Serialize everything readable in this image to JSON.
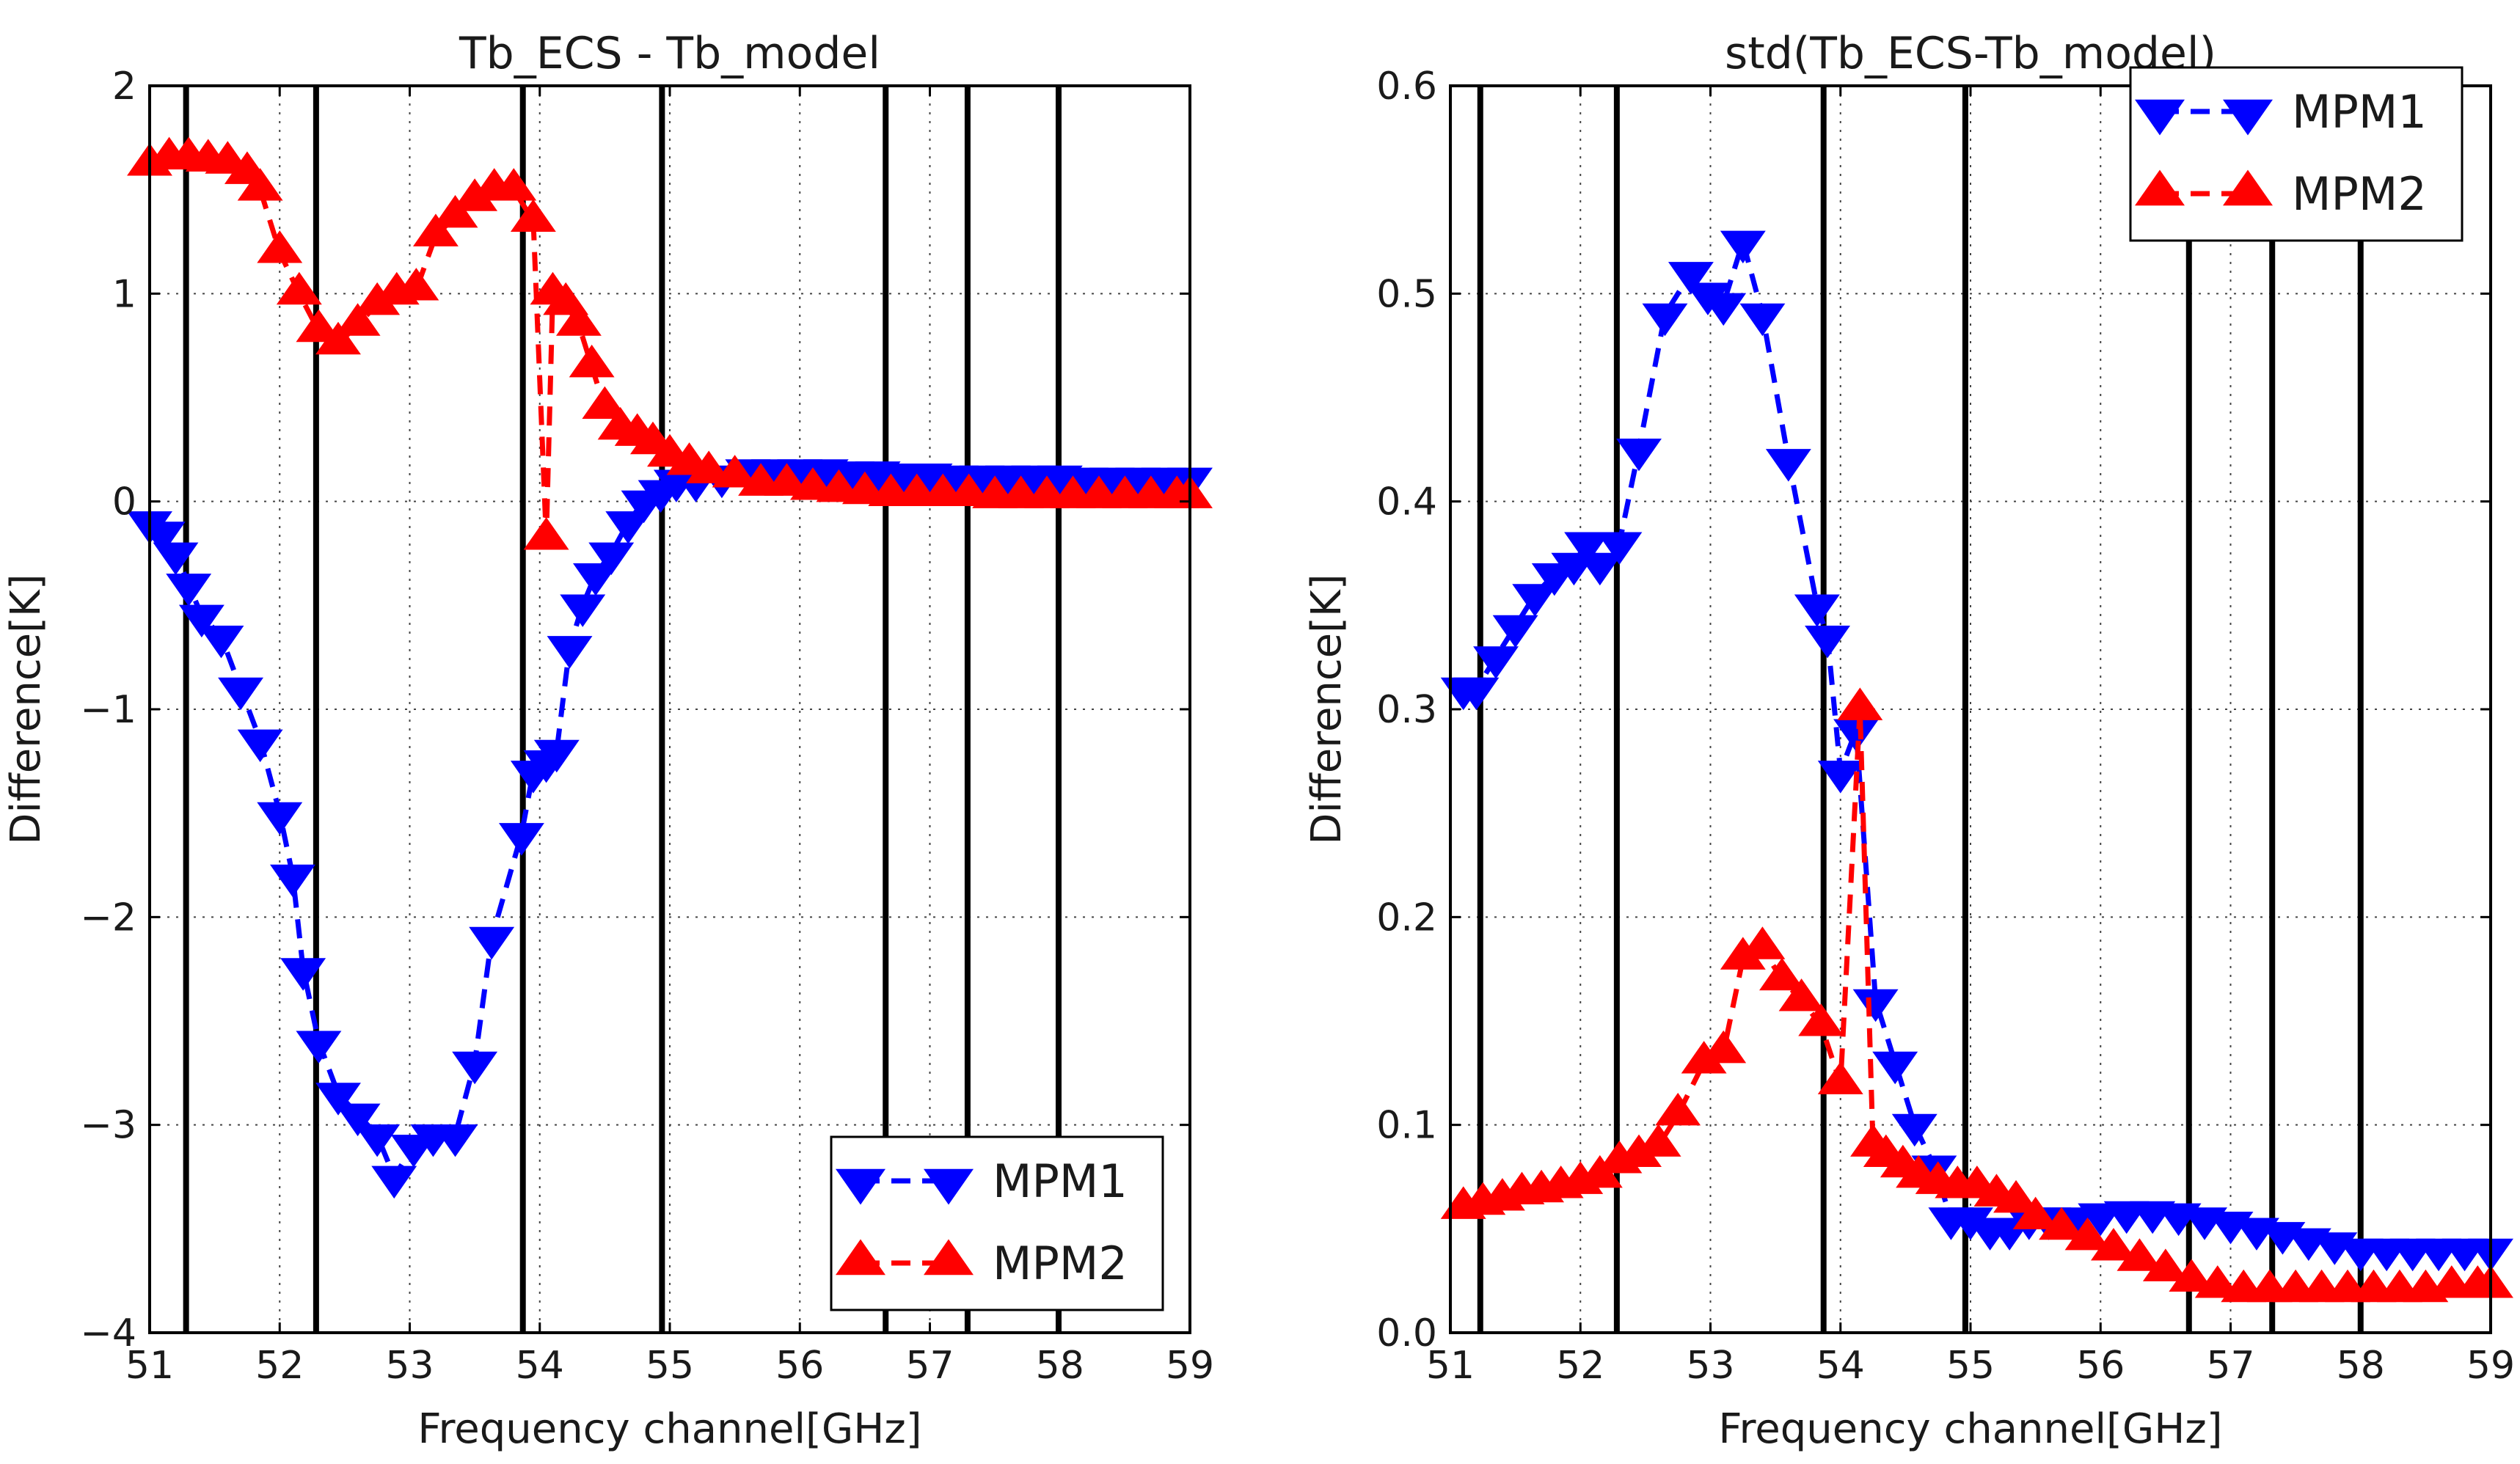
{
  "chart_data": [
    {
      "type": "line",
      "title": "Tb_ECS - Tb_model",
      "xlabel": "Frequency channel[GHz]",
      "ylabel": "Difference[K]",
      "xlim": [
        51,
        59
      ],
      "ylim": [
        -4,
        2
      ],
      "xticks": [
        51,
        52,
        53,
        54,
        55,
        56,
        57,
        58,
        59
      ],
      "yticks": [
        -4,
        -3,
        -2,
        -1,
        0,
        1,
        2
      ],
      "xtick_labels": [
        "51",
        "52",
        "53",
        "54",
        "55",
        "56",
        "57",
        "58",
        "59"
      ],
      "ytick_labels": [
        "−4",
        "−3",
        "−2",
        "−1",
        "0",
        "1",
        "2"
      ],
      "grid": true,
      "legend_position": "lower-right",
      "vertical_lines": [
        51.28,
        52.28,
        53.87,
        54.94,
        56.66,
        57.29,
        57.99
      ],
      "series": [
        {
          "name": "MPM1",
          "color": "#0000ff",
          "marker": "triangle-down",
          "linestyle": "dashed",
          "x": [
            51.0,
            51.1,
            51.2,
            51.3,
            51.4,
            51.55,
            51.7,
            51.85,
            52.0,
            52.1,
            52.18,
            52.3,
            52.45,
            52.6,
            52.75,
            52.88,
            53.03,
            53.18,
            53.35,
            53.5,
            53.63,
            53.86,
            53.95,
            54.05,
            54.13,
            54.23,
            54.33,
            54.43,
            54.55,
            54.68,
            54.8,
            54.93,
            55.05,
            55.2,
            55.4,
            55.6,
            55.8,
            56.0,
            56.2,
            56.4,
            56.6,
            56.8,
            57.0,
            57.2,
            57.4,
            57.6,
            57.8,
            58.0,
            58.2,
            58.4,
            58.6,
            58.8,
            59.0
          ],
          "y": [
            -0.1,
            -0.15,
            -0.25,
            -0.4,
            -0.55,
            -0.65,
            -0.9,
            -1.15,
            -1.5,
            -1.8,
            -2.25,
            -2.6,
            -2.85,
            -2.95,
            -3.05,
            -3.25,
            -3.1,
            -3.05,
            -3.05,
            -2.7,
            -2.1,
            -1.6,
            -1.3,
            -1.25,
            -1.2,
            -0.7,
            -0.5,
            -0.35,
            -0.25,
            -0.1,
            0.0,
            0.05,
            0.1,
            0.1,
            0.12,
            0.15,
            0.15,
            0.15,
            0.15,
            0.14,
            0.14,
            0.13,
            0.13,
            0.12,
            0.12,
            0.12,
            0.12,
            0.12,
            0.11,
            0.11,
            0.11,
            0.11,
            0.11
          ]
        },
        {
          "name": "MPM2",
          "color": "#ff0000",
          "marker": "triangle-up",
          "linestyle": "dashed",
          "x": [
            51.0,
            51.15,
            51.3,
            51.45,
            51.6,
            51.75,
            51.85,
            52.0,
            52.15,
            52.3,
            52.45,
            52.6,
            52.75,
            52.9,
            53.05,
            53.2,
            53.35,
            53.5,
            53.65,
            53.8,
            53.95,
            54.05,
            54.1,
            54.2,
            54.3,
            54.4,
            54.5,
            54.62,
            54.75,
            54.87,
            55.0,
            55.15,
            55.3,
            55.5,
            55.7,
            55.9,
            56.1,
            56.3,
            56.5,
            56.7,
            56.9,
            57.1,
            57.3,
            57.5,
            57.7,
            57.9,
            58.1,
            58.3,
            58.5,
            58.7,
            58.9,
            59.0
          ],
          "y": [
            1.62,
            1.65,
            1.65,
            1.64,
            1.63,
            1.58,
            1.5,
            1.2,
            1.0,
            0.82,
            0.76,
            0.85,
            0.95,
            1.0,
            1.02,
            1.28,
            1.37,
            1.45,
            1.5,
            1.5,
            1.35,
            -0.18,
            1.0,
            0.95,
            0.85,
            0.65,
            0.45,
            0.35,
            0.32,
            0.28,
            0.22,
            0.18,
            0.14,
            0.12,
            0.08,
            0.08,
            0.06,
            0.05,
            0.04,
            0.03,
            0.03,
            0.03,
            0.03,
            0.02,
            0.02,
            0.02,
            0.02,
            0.02,
            0.02,
            0.02,
            0.02,
            0.02
          ]
        }
      ]
    },
    {
      "type": "line",
      "title": "std(Tb_ECS-Tb_model)",
      "xlabel": "Frequency channel[GHz]",
      "ylabel": "Difference[K]",
      "xlim": [
        51,
        59
      ],
      "ylim": [
        0,
        0.6
      ],
      "xticks": [
        51,
        52,
        53,
        54,
        55,
        56,
        57,
        58,
        59
      ],
      "yticks": [
        0.0,
        0.1,
        0.2,
        0.3,
        0.4,
        0.5,
        0.6
      ],
      "xtick_labels": [
        "51",
        "52",
        "53",
        "54",
        "55",
        "56",
        "57",
        "58",
        "59"
      ],
      "ytick_labels": [
        "0.0",
        "0.1",
        "0.2",
        "0.3",
        "0.4",
        "0.5",
        "0.6"
      ],
      "grid": true,
      "legend_position": "upper-right",
      "vertical_lines": [
        51.23,
        52.28,
        53.87,
        54.96,
        56.68,
        57.32,
        58.0
      ],
      "series": [
        {
          "name": "MPM1",
          "color": "#0000ff",
          "marker": "triangle-down",
          "linestyle": "dashed",
          "x": [
            51.1,
            51.2,
            51.35,
            51.5,
            51.65,
            51.8,
            51.95,
            52.05,
            52.15,
            52.3,
            52.45,
            52.65,
            52.85,
            52.98,
            53.1,
            53.25,
            53.4,
            53.6,
            53.82,
            53.9,
            54.0,
            54.12,
            54.27,
            54.42,
            54.57,
            54.72,
            54.85,
            55.0,
            55.15,
            55.3,
            55.45,
            55.6,
            55.8,
            56.0,
            56.2,
            56.4,
            56.6,
            56.8,
            57.0,
            57.2,
            57.4,
            57.6,
            57.8,
            58.0,
            58.2,
            58.4,
            58.6,
            58.8,
            59.0
          ],
          "y": [
            0.31,
            0.31,
            0.325,
            0.34,
            0.355,
            0.365,
            0.37,
            0.38,
            0.37,
            0.38,
            0.425,
            0.49,
            0.51,
            0.5,
            0.495,
            0.525,
            0.49,
            0.42,
            0.35,
            0.335,
            0.27,
            0.29,
            0.16,
            0.13,
            0.1,
            0.08,
            0.055,
            0.055,
            0.05,
            0.05,
            0.055,
            0.055,
            0.055,
            0.057,
            0.058,
            0.058,
            0.057,
            0.055,
            0.053,
            0.05,
            0.048,
            0.045,
            0.043,
            0.04,
            0.04,
            0.04,
            0.04,
            0.04,
            0.04
          ]
        },
        {
          "name": "MPM2",
          "color": "#ff0000",
          "marker": "triangle-up",
          "linestyle": "dashed",
          "x": [
            51.1,
            51.25,
            51.4,
            51.55,
            51.7,
            51.85,
            52.0,
            52.15,
            52.3,
            52.45,
            52.6,
            52.75,
            52.95,
            53.1,
            53.25,
            53.4,
            53.55,
            53.7,
            53.85,
            54.0,
            54.15,
            54.25,
            54.35,
            54.48,
            54.6,
            54.75,
            54.9,
            55.05,
            55.2,
            55.35,
            55.5,
            55.7,
            55.9,
            56.1,
            56.3,
            56.5,
            56.7,
            56.9,
            57.1,
            57.3,
            57.5,
            57.7,
            57.9,
            58.1,
            58.3,
            58.5,
            58.7,
            58.9,
            59.0
          ],
          "y": [
            0.06,
            0.062,
            0.064,
            0.067,
            0.068,
            0.07,
            0.072,
            0.075,
            0.082,
            0.085,
            0.09,
            0.105,
            0.13,
            0.135,
            0.18,
            0.185,
            0.17,
            0.16,
            0.148,
            0.12,
            0.3,
            0.09,
            0.085,
            0.08,
            0.075,
            0.072,
            0.07,
            0.07,
            0.066,
            0.063,
            0.055,
            0.05,
            0.045,
            0.04,
            0.035,
            0.03,
            0.025,
            0.022,
            0.02,
            0.02,
            0.02,
            0.02,
            0.02,
            0.02,
            0.02,
            0.02,
            0.022,
            0.022,
            0.022
          ]
        }
      ]
    }
  ]
}
